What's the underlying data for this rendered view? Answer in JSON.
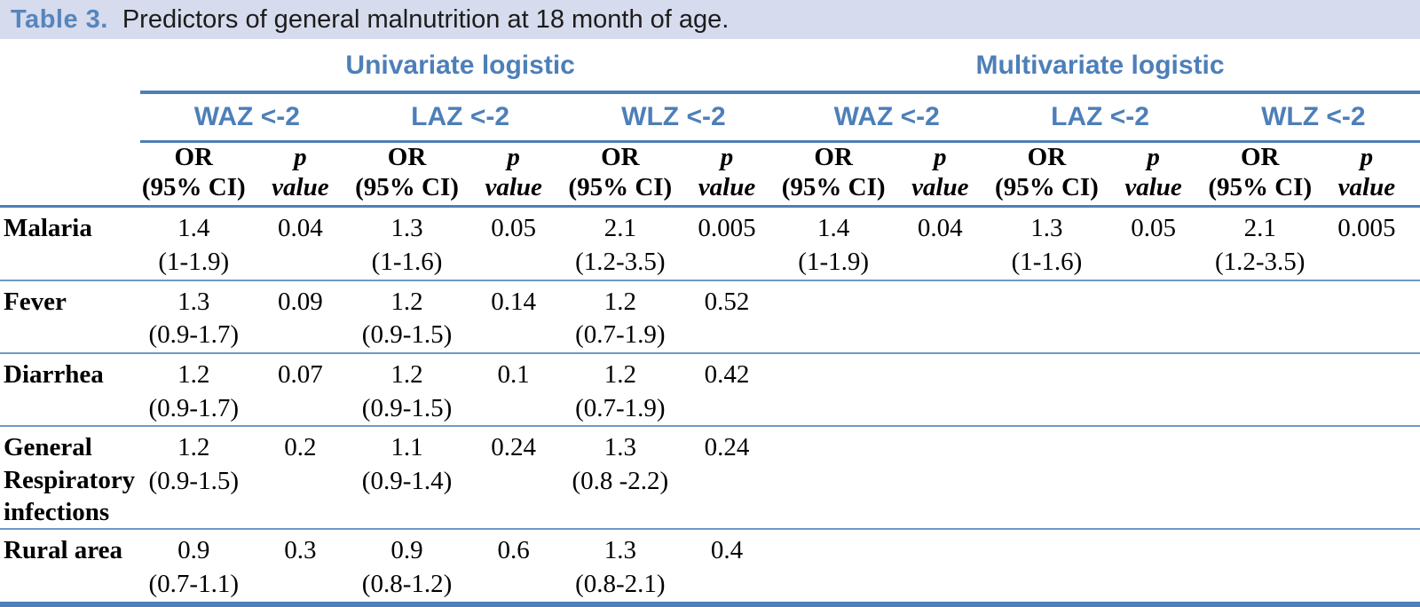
{
  "title": {
    "label": "Table 3.",
    "text": "Predictors of general malnutrition at 18 month of age."
  },
  "colors": {
    "accent_blue": "#4d7fb8",
    "header_text_blue": "#4d7fb8",
    "title_label_blue": "#5585bd",
    "row_separator_blue": "#6d99c8",
    "title_band_background": "#d6dbed"
  },
  "header": {
    "groups": [
      {
        "label": "Univariate logistic"
      },
      {
        "label": "Multivariate logistic"
      }
    ],
    "subgroups": [
      "WAZ <-2",
      "LAZ <-2",
      "WLZ <-2",
      "WAZ <-2",
      "LAZ <-2",
      "WLZ <-2"
    ],
    "measure": {
      "or_line1": "OR",
      "or_line2": "(95% CI)",
      "p_line1": "p",
      "p_line2": "value"
    }
  },
  "rows": [
    {
      "label": "Malaria",
      "cells": [
        {
          "or": "1.4",
          "ci": "(1-1.9)",
          "p": "0.04"
        },
        {
          "or": "1.3",
          "ci": "(1-1.6)",
          "p": "0.05"
        },
        {
          "or": "2.1",
          "ci": "(1.2-3.5)",
          "p": "0.005"
        },
        {
          "or": "1.4",
          "ci": "(1-1.9)",
          "p": "0.04"
        },
        {
          "or": "1.3",
          "ci": "(1-1.6)",
          "p": "0.05"
        },
        {
          "or": "2.1",
          "ci": "(1.2-3.5)",
          "p": "0.005"
        }
      ]
    },
    {
      "label": "Fever",
      "cells": [
        {
          "or": "1.3",
          "ci": "(0.9-1.7)",
          "p": "0.09"
        },
        {
          "or": "1.2",
          "ci": "(0.9-1.5)",
          "p": "0.14"
        },
        {
          "or": "1.2",
          "ci": "(0.7-1.9)",
          "p": "0.52"
        },
        {},
        {},
        {}
      ]
    },
    {
      "label": "Diarrhea",
      "cells": [
        {
          "or": "1.2",
          "ci": "(0.9-1.7)",
          "p": "0.07"
        },
        {
          "or": "1.2",
          "ci": "(0.9-1.5)",
          "p": "0.1"
        },
        {
          "or": "1.2",
          "ci": "(0.7-1.9)",
          "p": "0.42"
        },
        {},
        {},
        {}
      ]
    },
    {
      "label": "General Respiratory infections",
      "cells": [
        {
          "or": "1.2",
          "ci": "(0.9-1.5)",
          "p": "0.2"
        },
        {
          "or": "1.1",
          "ci": "(0.9-1.4)",
          "p": "0.24"
        },
        {
          "or": "1.3",
          "ci": "(0.8 -2.2)",
          "p": "0.24"
        },
        {},
        {},
        {}
      ]
    },
    {
      "label": "Rural area",
      "cells": [
        {
          "or": "0.9",
          "ci": "(0.7-1.1)",
          "p": "0.3"
        },
        {
          "or": "0.9",
          "ci": "(0.8-1.2)",
          "p": "0.6"
        },
        {
          "or": "1.3",
          "ci": "(0.8-2.1)",
          "p": "0.4"
        },
        {},
        {},
        {}
      ]
    }
  ]
}
